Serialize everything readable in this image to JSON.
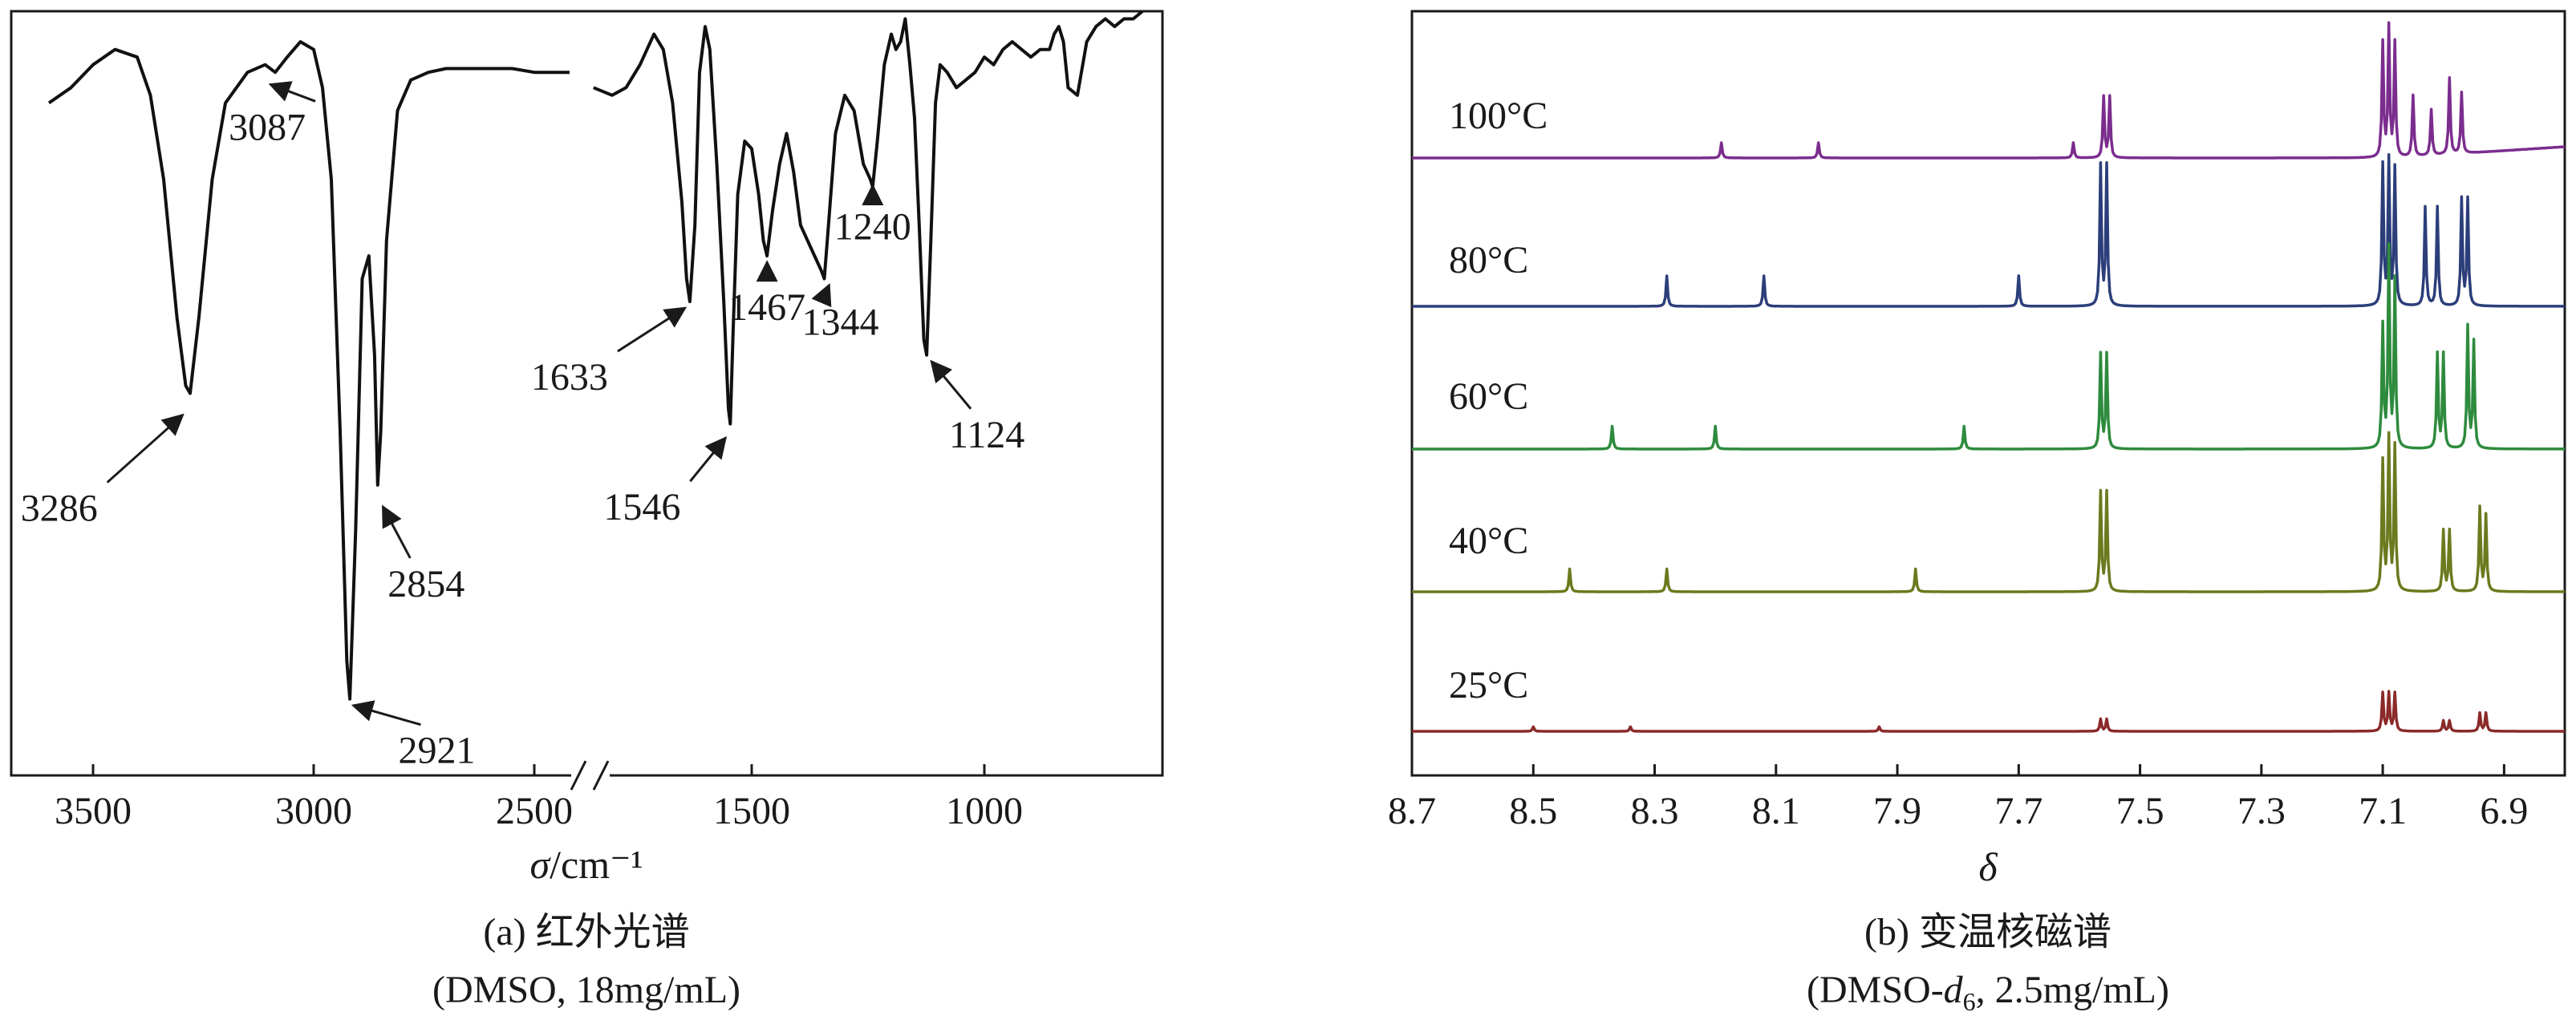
{
  "chart_data": [
    {
      "type": "line",
      "panel": "a",
      "caption_line1": "(a) 红外光谱",
      "caption_line2": "(DMSO, 18mg/mL)",
      "xlabel_symbol": "σ",
      "xlabel_unit": "/cm⁻¹",
      "x_ticks": [
        "3500",
        "3000",
        "2500",
        "1500",
        "1000"
      ],
      "axis_break": true,
      "annotations": [
        {
          "label": "3286",
          "x": 3286,
          "y": 0.48
        },
        {
          "label": "3087",
          "x": 3087,
          "y": 0.9
        },
        {
          "label": "2921",
          "x": 2921,
          "y": 0.1
        },
        {
          "label": "2854",
          "x": 2854,
          "y": 0.36
        },
        {
          "label": "1633",
          "x": 1633,
          "y": 0.62
        },
        {
          "label": "1546",
          "x": 1546,
          "y": 0.45
        },
        {
          "label": "1467",
          "x": 1467,
          "y": 0.68
        },
        {
          "label": "1344",
          "x": 1344,
          "y": 0.65
        },
        {
          "label": "1240",
          "x": 1240,
          "y": 0.78
        },
        {
          "label": "1124",
          "x": 1124,
          "y": 0.55
        }
      ],
      "series": [
        {
          "segment": "high",
          "x": [
            3600,
            3550,
            3500,
            3450,
            3400,
            3370,
            3340,
            3310,
            3290,
            3280,
            3260,
            3230,
            3200,
            3150,
            3110,
            3087,
            3060,
            3030,
            3000,
            2980,
            2960,
            2940,
            2925,
            2918,
            2905,
            2890,
            2875,
            2862,
            2855,
            2848,
            2835,
            2810,
            2780,
            2740,
            2700,
            2650,
            2600,
            2550,
            2500,
            2450,
            2420
          ],
          "y": [
            0.88,
            0.9,
            0.93,
            0.95,
            0.94,
            0.89,
            0.78,
            0.6,
            0.51,
            0.5,
            0.6,
            0.78,
            0.88,
            0.92,
            0.93,
            0.92,
            0.94,
            0.96,
            0.95,
            0.9,
            0.78,
            0.45,
            0.15,
            0.1,
            0.32,
            0.65,
            0.68,
            0.55,
            0.38,
            0.45,
            0.7,
            0.87,
            0.91,
            0.92,
            0.925,
            0.925,
            0.925,
            0.925,
            0.92,
            0.92,
            0.92
          ]
        },
        {
          "segment": "low",
          "x": [
            1840,
            1800,
            1770,
            1740,
            1710,
            1690,
            1670,
            1650,
            1640,
            1633,
            1622,
            1612,
            1600,
            1590,
            1575,
            1560,
            1550,
            1546,
            1540,
            1530,
            1515,
            1500,
            1485,
            1475,
            1467,
            1455,
            1440,
            1425,
            1410,
            1395,
            1380,
            1365,
            1350,
            1344,
            1335,
            1320,
            1300,
            1280,
            1260,
            1245,
            1240,
            1230,
            1215,
            1200,
            1190,
            1180,
            1170,
            1160,
            1150,
            1140,
            1130,
            1124,
            1115,
            1105,
            1095,
            1080,
            1060,
            1040,
            1020,
            1000,
            980,
            960,
            940,
            920,
            900,
            880,
            860,
            850,
            840,
            830,
            820,
            800,
            780,
            760,
            740,
            720,
            700,
            680,
            660
          ],
          "y": [
            0.9,
            0.89,
            0.9,
            0.93,
            0.97,
            0.95,
            0.88,
            0.75,
            0.65,
            0.62,
            0.72,
            0.92,
            0.98,
            0.95,
            0.8,
            0.62,
            0.48,
            0.46,
            0.58,
            0.76,
            0.83,
            0.82,
            0.76,
            0.7,
            0.68,
            0.74,
            0.8,
            0.84,
            0.79,
            0.72,
            0.7,
            0.68,
            0.66,
            0.65,
            0.72,
            0.84,
            0.89,
            0.87,
            0.8,
            0.78,
            0.77,
            0.83,
            0.93,
            0.97,
            0.95,
            0.96,
            0.99,
            0.93,
            0.86,
            0.72,
            0.57,
            0.55,
            0.7,
            0.88,
            0.93,
            0.92,
            0.9,
            0.91,
            0.92,
            0.94,
            0.93,
            0.95,
            0.96,
            0.95,
            0.94,
            0.95,
            0.95,
            0.97,
            0.98,
            0.96,
            0.9,
            0.89,
            0.96,
            0.98,
            0.99,
            0.98,
            0.99,
            0.99,
            1.0
          ]
        }
      ]
    },
    {
      "type": "line",
      "panel": "b",
      "caption_line1": "(b) 变温核磁谱",
      "caption_line2_prefix": "(DMSO-",
      "caption_line2_italic": "d",
      "caption_line2_sub": "6",
      "caption_line2_suffix": ", 2.5mg/mL)",
      "xlabel": "δ",
      "xlim": [
        8.7,
        6.8
      ],
      "x_ticks": [
        "8.7",
        "8.5",
        "8.3",
        "8.1",
        "7.9",
        "7.7",
        "7.5",
        "7.3",
        "7.1",
        "6.9"
      ],
      "series": [
        {
          "name": "100°C",
          "color": "#7b2d8e",
          "peaks": [
            {
              "x": 8.19,
              "h": 0.1
            },
            {
              "x": 8.03,
              "h": 0.1
            },
            {
              "x": 7.61,
              "h": 0.1
            },
            {
              "x": 7.56,
              "h": 0.4
            },
            {
              "x": 7.55,
              "h": 0.4
            },
            {
              "x": 7.1,
              "h": 0.75
            },
            {
              "x": 7.09,
              "h": 0.85
            },
            {
              "x": 7.08,
              "h": 0.75
            },
            {
              "x": 7.05,
              "h": 0.4
            },
            {
              "x": 7.02,
              "h": 0.3
            },
            {
              "x": 6.99,
              "h": 0.5
            },
            {
              "x": 6.97,
              "h": 0.4
            }
          ]
        },
        {
          "name": "80°C",
          "color": "#2c3e7a",
          "peaks": [
            {
              "x": 8.28,
              "h": 0.2
            },
            {
              "x": 8.12,
              "h": 0.2
            },
            {
              "x": 7.7,
              "h": 0.2
            },
            {
              "x": 7.565,
              "h": 0.92
            },
            {
              "x": 7.555,
              "h": 0.92
            },
            {
              "x": 7.1,
              "h": 0.92
            },
            {
              "x": 7.09,
              "h": 0.95
            },
            {
              "x": 7.08,
              "h": 0.9
            },
            {
              "x": 7.03,
              "h": 0.65
            },
            {
              "x": 7.01,
              "h": 0.65
            },
            {
              "x": 6.97,
              "h": 0.7
            },
            {
              "x": 6.96,
              "h": 0.7
            }
          ]
        },
        {
          "name": "60°C",
          "color": "#2e8b3d",
          "peaks": [
            {
              "x": 8.37,
              "h": 0.15
            },
            {
              "x": 8.2,
              "h": 0.15
            },
            {
              "x": 7.79,
              "h": 0.15
            },
            {
              "x": 7.565,
              "h": 0.62
            },
            {
              "x": 7.555,
              "h": 0.62
            },
            {
              "x": 7.1,
              "h": 0.8
            },
            {
              "x": 7.09,
              "h": 1.3
            },
            {
              "x": 7.08,
              "h": 1.1
            },
            {
              "x": 7.01,
              "h": 0.62
            },
            {
              "x": 7.0,
              "h": 0.62
            },
            {
              "x": 6.96,
              "h": 0.8
            },
            {
              "x": 6.95,
              "h": 0.7
            }
          ]
        },
        {
          "name": "40°C",
          "color": "#6b7a1e",
          "peaks": [
            {
              "x": 8.44,
              "h": 0.15
            },
            {
              "x": 8.28,
              "h": 0.15
            },
            {
              "x": 7.87,
              "h": 0.15
            },
            {
              "x": 7.565,
              "h": 0.65
            },
            {
              "x": 7.555,
              "h": 0.65
            },
            {
              "x": 7.1,
              "h": 0.85
            },
            {
              "x": 7.09,
              "h": 1.0
            },
            {
              "x": 7.08,
              "h": 0.95
            },
            {
              "x": 7.0,
              "h": 0.4
            },
            {
              "x": 6.99,
              "h": 0.4
            },
            {
              "x": 6.94,
              "h": 0.55
            },
            {
              "x": 6.93,
              "h": 0.5
            }
          ]
        },
        {
          "name": "25°C",
          "color": "#8b2a2a",
          "peaks": [
            {
              "x": 8.5,
              "h": 0.03
            },
            {
              "x": 8.34,
              "h": 0.03
            },
            {
              "x": 7.93,
              "h": 0.03
            },
            {
              "x": 7.565,
              "h": 0.08
            },
            {
              "x": 7.555,
              "h": 0.08
            },
            {
              "x": 7.1,
              "h": 0.25
            },
            {
              "x": 7.09,
              "h": 0.25
            },
            {
              "x": 7.08,
              "h": 0.25
            },
            {
              "x": 7.0,
              "h": 0.07
            },
            {
              "x": 6.99,
              "h": 0.07
            },
            {
              "x": 6.94,
              "h": 0.12
            },
            {
              "x": 6.93,
              "h": 0.12
            }
          ]
        }
      ]
    }
  ]
}
